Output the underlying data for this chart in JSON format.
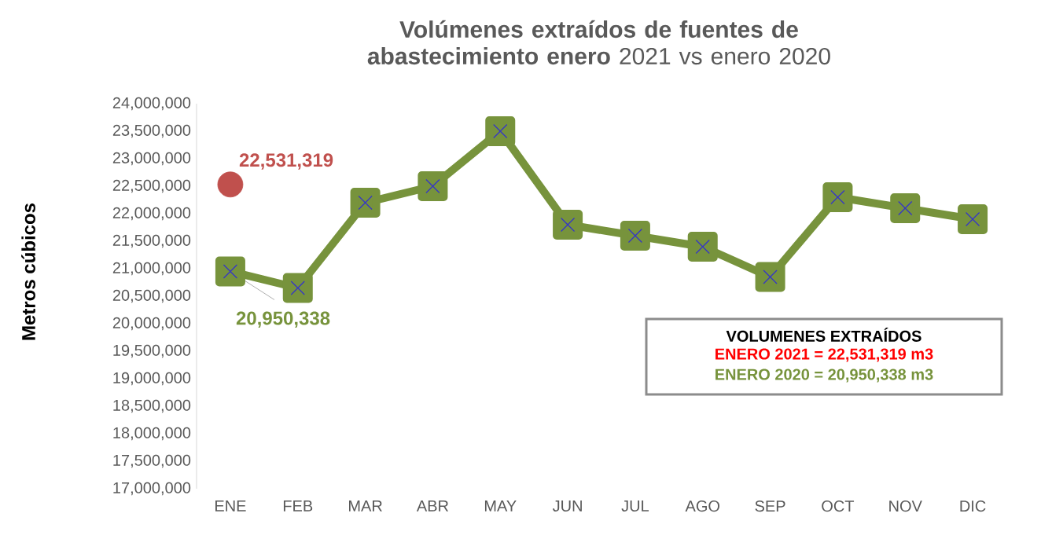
{
  "chart_data": {
    "type": "line",
    "title": "**Volúmenes extraídos de fuentes de abastecimiento enero** 2021 vs enero 2020",
    "ylabel": "Metros cúbicos",
    "categories": [
      "ENE",
      "FEB",
      "MAR",
      "ABR",
      "MAY",
      "JUN",
      "JUL",
      "AGO",
      "SEP",
      "OCT",
      "NOV",
      "DIC"
    ],
    "series": [
      {
        "type": "scatter",
        "color": "#c0504d",
        "marker": "circle",
        "values": [
          22531319,
          null,
          null,
          null,
          null,
          null,
          null,
          null,
          null,
          null,
          null,
          null
        ],
        "value_labels": [
          "22,531,319",
          null,
          null,
          null,
          null,
          null,
          null,
          null,
          null,
          null,
          null,
          null
        ]
      },
      {
        "color": "#77933c",
        "marker": "square",
        "values": [
          20950338,
          20650000,
          22200000,
          22500000,
          23500000,
          21800000,
          21600000,
          21400000,
          20850000,
          22300000,
          22100000,
          21900000
        ],
        "value_labels": [
          "20,950,338",
          null,
          null,
          null,
          null,
          null,
          null,
          null,
          null,
          null,
          null,
          null
        ]
      }
    ],
    "ylim": [
      17000000,
      24000000
    ],
    "yticks": [
      {
        "value": 17000000,
        "label": "17,000,000"
      },
      {
        "value": 17500000,
        "label": "17,500,000"
      },
      {
        "value": 18000000,
        "label": "18,000,000"
      },
      {
        "value": 18500000,
        "label": "18,500,000"
      },
      {
        "value": 19000000,
        "label": "19,000,000"
      },
      {
        "value": 19500000,
        "label": "19,500,000"
      },
      {
        "value": 20000000,
        "label": "20,000,000"
      },
      {
        "value": 20500000,
        "label": "20,500,000"
      },
      {
        "value": 21000000,
        "label": "21,000,000"
      },
      {
        "value": 21500000,
        "label": "21,500,000"
      },
      {
        "value": 22000000,
        "label": "22,000,000"
      },
      {
        "value": 22500000,
        "label": "22,500,000"
      },
      {
        "value": 23000000,
        "label": "23,000,000"
      },
      {
        "value": 23500000,
        "label": "23,500,000"
      },
      {
        "value": 24000000,
        "label": "24,000,000"
      }
    ],
    "annotations": [
      "VOLUMENES EXTRAÍDOS",
      "ENERO 2021 = 22,531,319 m3",
      "ENERO 2020 = 20,950,338 m3"
    ],
    "grid": false
  }
}
